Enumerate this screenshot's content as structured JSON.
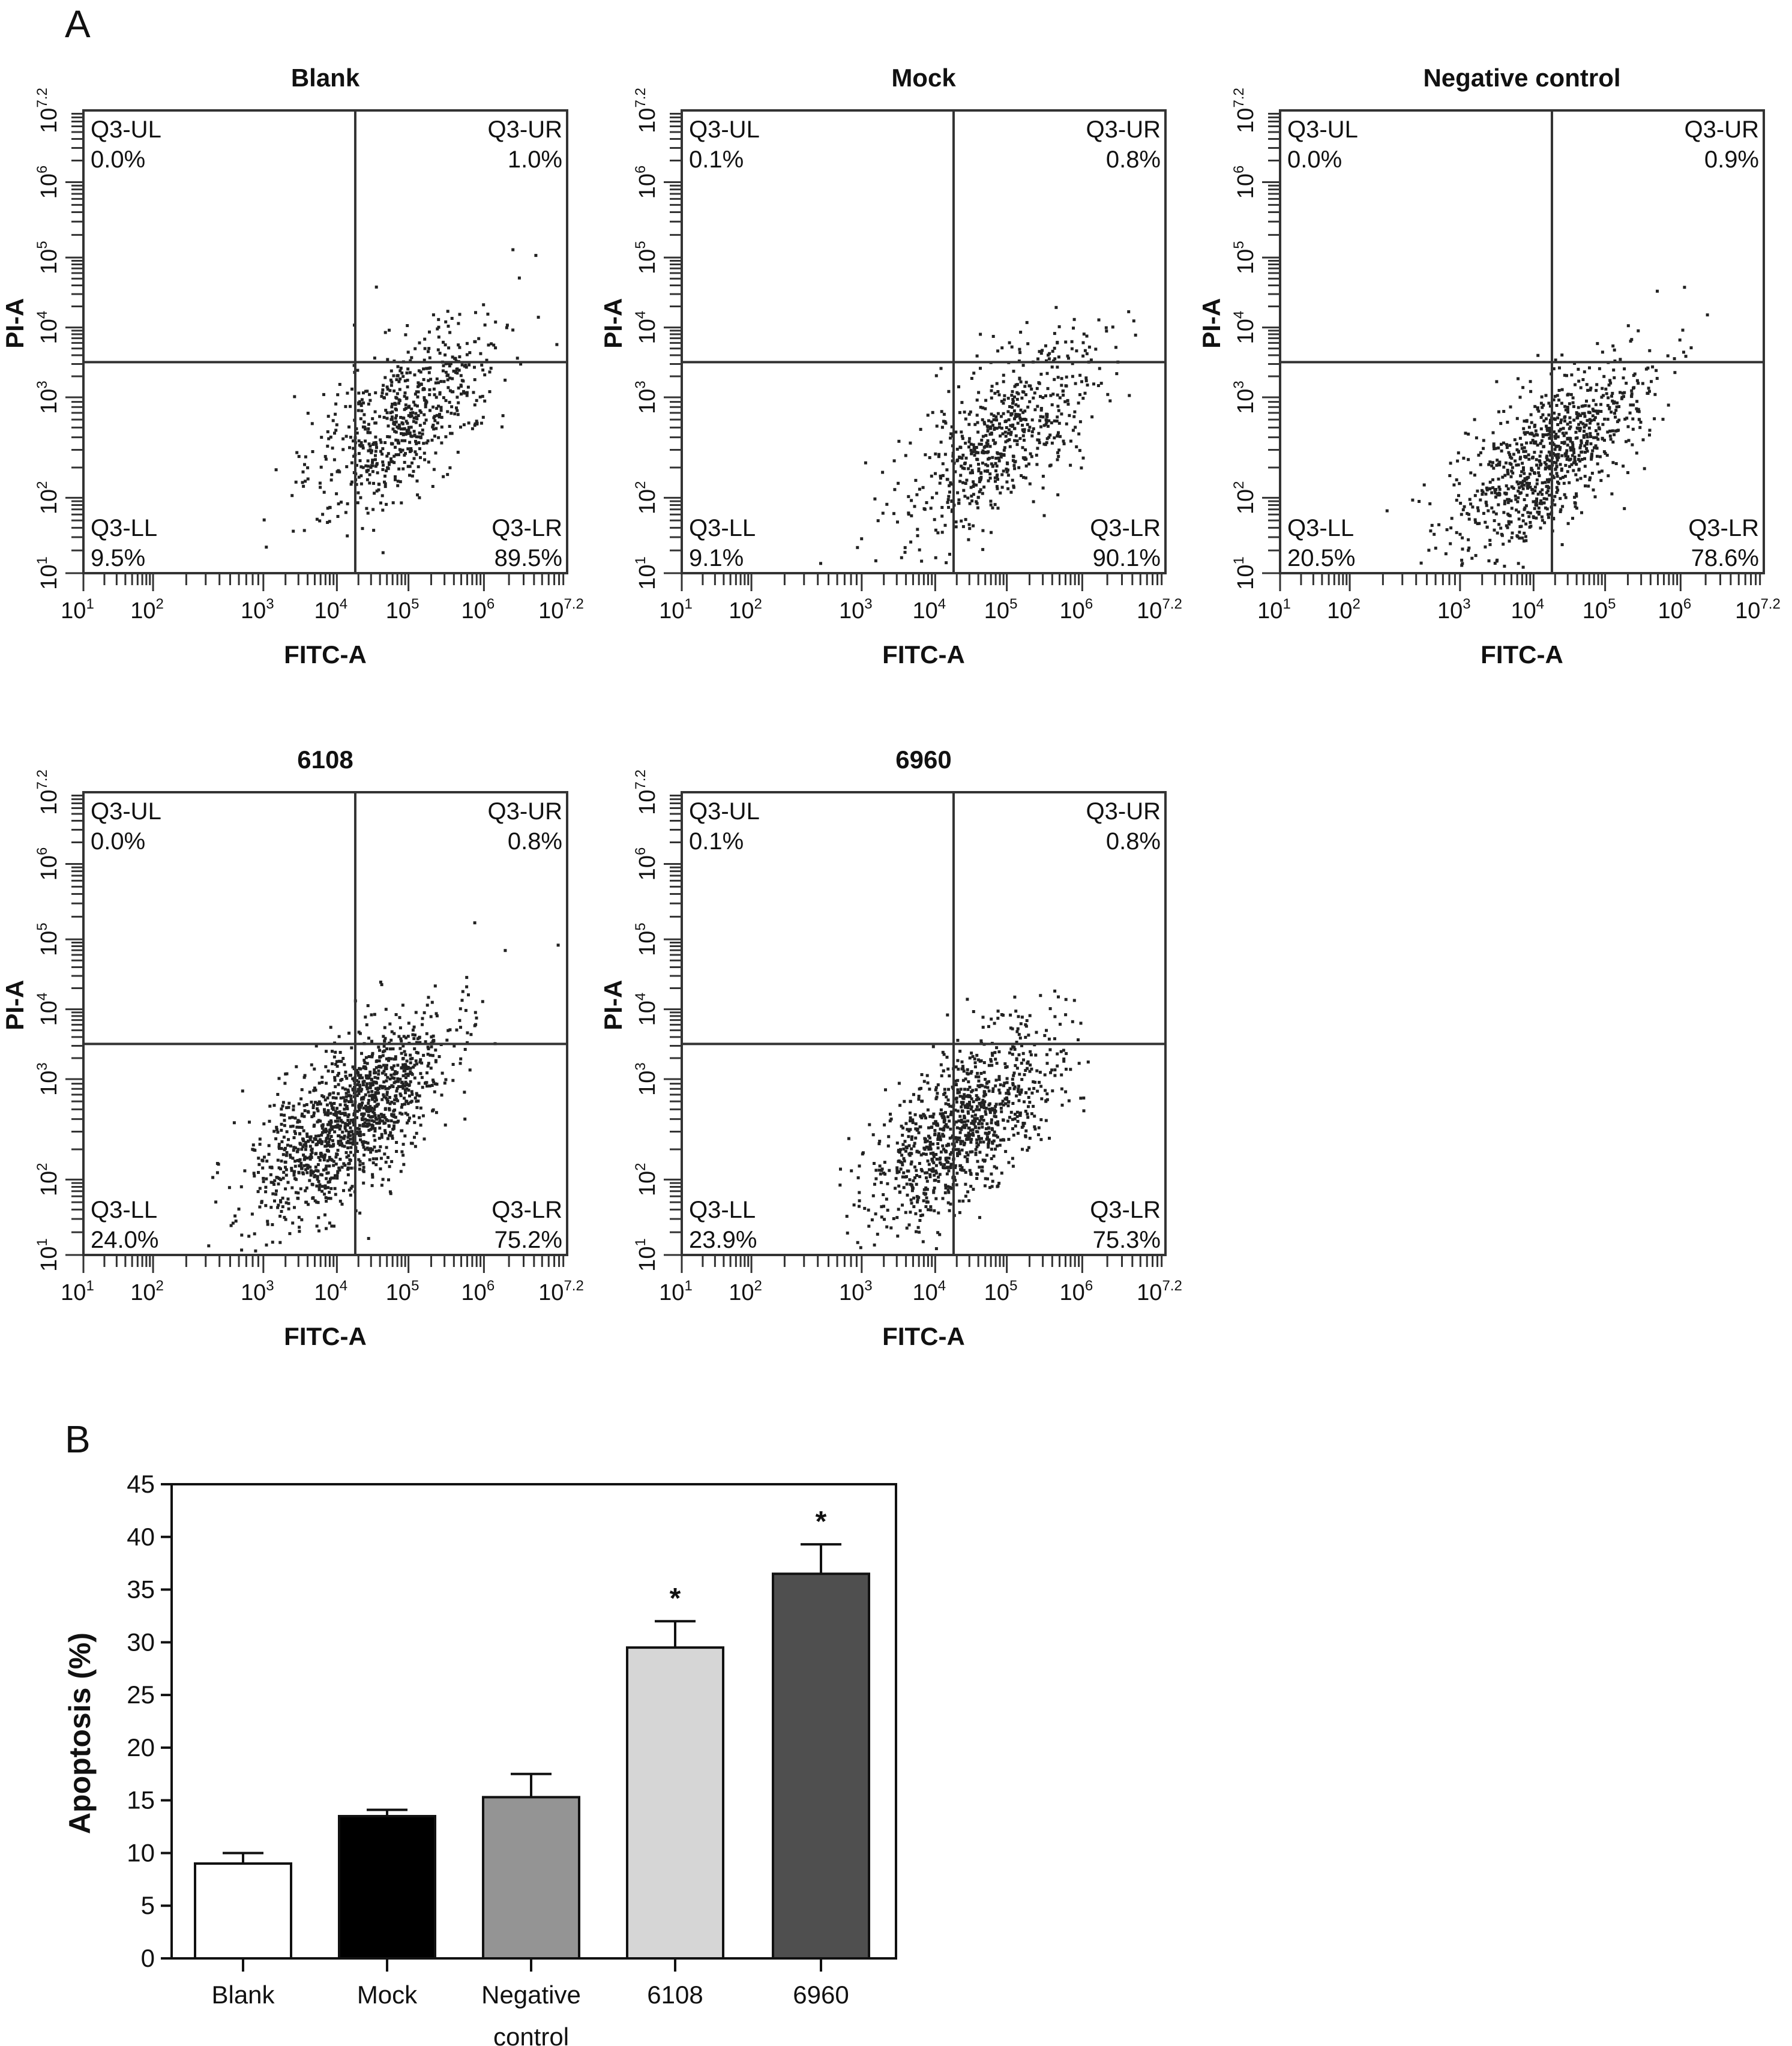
{
  "panel_labels": {
    "a": "A",
    "b": "B"
  },
  "chart_data": [
    {
      "type": "scatter",
      "title": "Blank",
      "xlabel": "FITC-A",
      "ylabel": "PI-A",
      "x_scale": "log",
      "y_scale": "log",
      "tick_base": "10",
      "x_ticks": [
        "1",
        "2",
        "3",
        "4",
        "5",
        "6",
        "7.2"
      ],
      "y_ticks": [
        "1",
        "2",
        "3",
        "4",
        "5",
        "6",
        "7.2"
      ],
      "quadrants": {
        "UL": {
          "label": "Q3-UL",
          "value": "0.0%"
        },
        "UR": {
          "label": "Q3-UR",
          "value": "1.0%"
        },
        "LL": {
          "label": "Q3-LL",
          "value": "9.5%"
        },
        "LR": {
          "label": "Q3-LR",
          "value": "89.5%"
        }
      }
    },
    {
      "type": "scatter",
      "title": "Mock",
      "xlabel": "FITC-A",
      "ylabel": "PI-A",
      "x_scale": "log",
      "y_scale": "log",
      "tick_base": "10",
      "x_ticks": [
        "1",
        "2",
        "3",
        "4",
        "5",
        "6",
        "7.2"
      ],
      "y_ticks": [
        "1",
        "2",
        "3",
        "4",
        "5",
        "6",
        "7.2"
      ],
      "quadrants": {
        "UL": {
          "label": "Q3-UL",
          "value": "0.1%"
        },
        "UR": {
          "label": "Q3-UR",
          "value": "0.8%"
        },
        "LL": {
          "label": "Q3-LL",
          "value": "9.1%"
        },
        "LR": {
          "label": "Q3-LR",
          "value": "90.1%"
        }
      }
    },
    {
      "type": "scatter",
      "title": "Negative control",
      "xlabel": "FITC-A",
      "ylabel": "PI-A",
      "x_scale": "log",
      "y_scale": "log",
      "tick_base": "10",
      "x_ticks": [
        "1",
        "2",
        "3",
        "4",
        "5",
        "6",
        "7.2"
      ],
      "y_ticks": [
        "1",
        "2",
        "3",
        "4",
        "5",
        "6",
        "7.2"
      ],
      "quadrants": {
        "UL": {
          "label": "Q3-UL",
          "value": "0.0%"
        },
        "UR": {
          "label": "Q3-UR",
          "value": "0.9%"
        },
        "LL": {
          "label": "Q3-LL",
          "value": "20.5%"
        },
        "LR": {
          "label": "Q3-LR",
          "value": "78.6%"
        }
      }
    },
    {
      "type": "scatter",
      "title": "6108",
      "xlabel": "FITC-A",
      "ylabel": "PI-A",
      "x_scale": "log",
      "y_scale": "log",
      "tick_base": "10",
      "x_ticks": [
        "1",
        "2",
        "3",
        "4",
        "5",
        "6",
        "7.2"
      ],
      "y_ticks": [
        "1",
        "2",
        "3",
        "4",
        "5",
        "6",
        "7.2"
      ],
      "quadrants": {
        "UL": {
          "label": "Q3-UL",
          "value": "0.0%"
        },
        "UR": {
          "label": "Q3-UR",
          "value": "0.8%"
        },
        "LL": {
          "label": "Q3-LL",
          "value": "24.0%"
        },
        "LR": {
          "label": "Q3-LR",
          "value": "75.2%"
        }
      }
    },
    {
      "type": "scatter",
      "title": "6960",
      "xlabel": "FITC-A",
      "ylabel": "PI-A",
      "x_scale": "log",
      "y_scale": "log",
      "tick_base": "10",
      "x_ticks": [
        "1",
        "2",
        "3",
        "4",
        "5",
        "6",
        "7.2"
      ],
      "y_ticks": [
        "1",
        "2",
        "3",
        "4",
        "5",
        "6",
        "7.2"
      ],
      "quadrants": {
        "UL": {
          "label": "Q3-UL",
          "value": "0.1%"
        },
        "UR": {
          "label": "Q3-UR",
          "value": "0.8%"
        },
        "LL": {
          "label": "Q3-LL",
          "value": "23.9%"
        },
        "LR": {
          "label": "Q3-LR",
          "value": "75.3%"
        }
      }
    },
    {
      "type": "bar",
      "title": "",
      "xlabel": "",
      "ylabel": "Apoptosis (%)",
      "ylim": [
        0,
        45
      ],
      "yticks": [
        0,
        5,
        10,
        15,
        20,
        25,
        30,
        35,
        40,
        45
      ],
      "categories": [
        "Blank",
        "Mock",
        "Negative control",
        "6108",
        "6960"
      ],
      "category_lines": [
        [
          "Blank"
        ],
        [
          "Mock"
        ],
        [
          "Negative",
          "control"
        ],
        [
          "6108"
        ],
        [
          "6960"
        ]
      ],
      "values": [
        9.0,
        13.5,
        15.3,
        29.5,
        36.5
      ],
      "error_upper": [
        10.0,
        14.1,
        17.5,
        32.0,
        39.3
      ],
      "annotations": [
        "",
        "",
        "",
        "*",
        "*"
      ],
      "colors": [
        "#ffffff",
        "#000000",
        "#949494",
        "#d6d6d6",
        "#4f4f4f"
      ],
      "grid": false
    }
  ]
}
